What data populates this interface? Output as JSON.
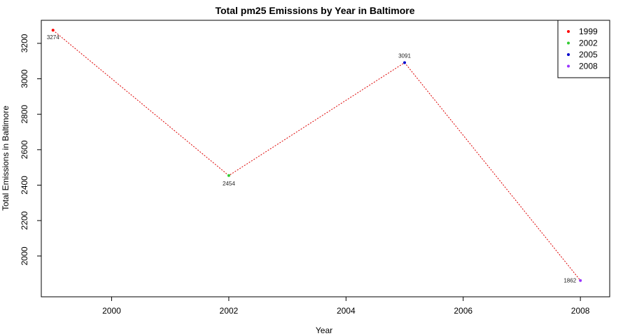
{
  "chart_data": {
    "type": "line",
    "title": "Total pm25 Emissions by Year in Baltimore",
    "xlabel": "Year",
    "ylabel": "Total Emissions in Baltimore",
    "x": [
      1999,
      2002,
      2005,
      2008
    ],
    "y": [
      3274,
      2454,
      3091,
      1862
    ],
    "point_labels": [
      "3274",
      "2454",
      "3091",
      "1862"
    ],
    "point_colors": [
      "#ff0000",
      "#33cc33",
      "#0000cc",
      "#9933ff"
    ],
    "line_color": "#dd0000",
    "line_style": "dotted",
    "xlim": [
      1998.8,
      2008.5
    ],
    "ylim": [
      1770,
      3330
    ],
    "x_ticks": [
      2000,
      2002,
      2004,
      2006,
      2008
    ],
    "x_tick_labels": [
      "2000",
      "2002",
      "2004",
      "2006",
      "2008"
    ],
    "y_ticks": [
      2000,
      2200,
      2400,
      2600,
      2800,
      3000,
      3200
    ],
    "y_tick_labels": [
      "2000",
      "2200",
      "2400",
      "2600",
      "2800",
      "3000",
      "3200"
    ],
    "grid": false,
    "legend": {
      "position": "top-right",
      "entries": [
        {
          "label": "1999",
          "color": "#ff0000"
        },
        {
          "label": "2002",
          "color": "#33cc33"
        },
        {
          "label": "2005",
          "color": "#0000cc"
        },
        {
          "label": "2008",
          "color": "#9933ff"
        }
      ]
    }
  }
}
